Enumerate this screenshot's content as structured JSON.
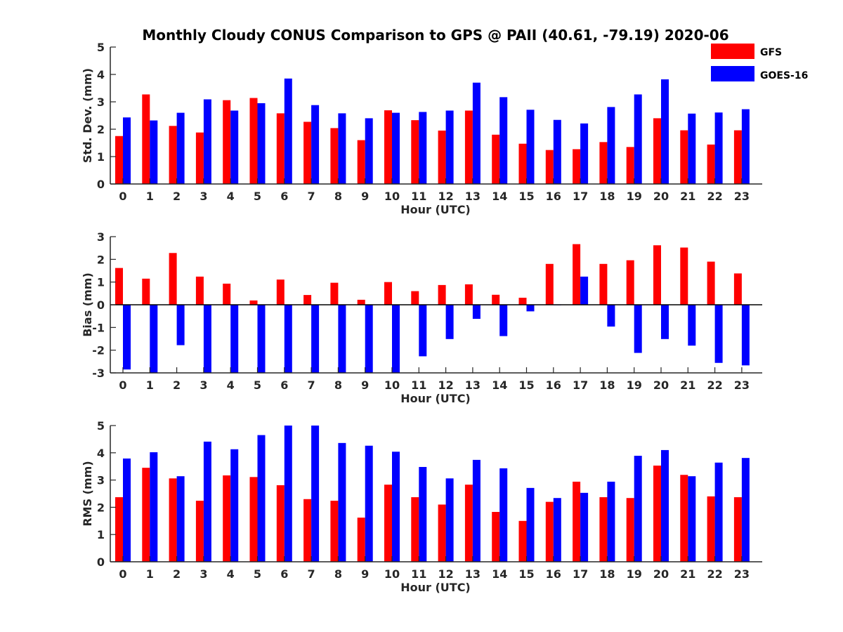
{
  "title": "Monthly Cloudy CONUS Comparison to GPS @ PAII (40.61, -79.19) 2020-06",
  "legend": [
    {
      "label": "GFS",
      "color": "#ff0000"
    },
    {
      "label": "GOES-16",
      "color": "#0000ff"
    }
  ],
  "chart_data": [
    {
      "type": "bar",
      "xlabel": "Hour (UTC)",
      "ylabel": "Std. Dev. (mm)",
      "ylim": [
        0,
        5
      ],
      "yticks": [
        0,
        1,
        2,
        3,
        4,
        5
      ],
      "categories": [
        "0",
        "1",
        "2",
        "3",
        "4",
        "5",
        "6",
        "7",
        "8",
        "9",
        "10",
        "11",
        "12",
        "13",
        "14",
        "15",
        "16",
        "17",
        "18",
        "19",
        "20",
        "21",
        "22",
        "23"
      ],
      "series": [
        {
          "name": "GFS",
          "color": "#ff0000",
          "values": [
            1.75,
            3.27,
            2.12,
            1.88,
            3.06,
            3.14,
            2.58,
            2.27,
            2.04,
            1.6,
            2.69,
            2.33,
            1.95,
            2.68,
            1.8,
            1.47,
            1.24,
            1.27,
            1.53,
            1.35,
            2.4,
            1.96,
            1.44,
            1.96
          ]
        },
        {
          "name": "GOES-16",
          "color": "#0000ff",
          "values": [
            2.43,
            2.32,
            2.6,
            3.09,
            2.68,
            2.95,
            3.85,
            2.88,
            2.58,
            2.4,
            2.6,
            2.63,
            2.68,
            3.7,
            3.17,
            2.71,
            2.34,
            2.21,
            2.81,
            3.27,
            3.82,
            2.57,
            2.61,
            2.73
          ]
        }
      ]
    },
    {
      "type": "bar",
      "xlabel": "Hour (UTC)",
      "ylabel": "Bias (mm)",
      "ylim": [
        -3,
        3
      ],
      "yticks": [
        -3,
        -2,
        -1,
        0,
        1,
        2,
        3
      ],
      "zero_line": true,
      "categories": [
        "0",
        "1",
        "2",
        "3",
        "4",
        "5",
        "6",
        "7",
        "8",
        "9",
        "10",
        "11",
        "12",
        "13",
        "14",
        "15",
        "16",
        "17",
        "18",
        "19",
        "20",
        "21",
        "22",
        "23"
      ],
      "series": [
        {
          "name": "GFS",
          "color": "#ff0000",
          "values": [
            1.62,
            1.15,
            2.28,
            1.24,
            0.93,
            0.19,
            1.11,
            0.43,
            0.97,
            0.22,
            1.0,
            0.6,
            0.87,
            0.9,
            0.44,
            0.31,
            1.8,
            2.67,
            1.8,
            1.96,
            2.62,
            2.52,
            1.9,
            1.38
          ]
        },
        {
          "name": "GOES-16",
          "color": "#0000ff",
          "values": [
            -2.85,
            -3.0,
            -1.78,
            -3.0,
            -3.0,
            -3.0,
            -3.0,
            -3.0,
            -3.0,
            -3.0,
            -3.0,
            -2.27,
            -1.51,
            -0.62,
            -1.38,
            -0.29,
            -0.02,
            1.24,
            -0.96,
            -2.12,
            -1.51,
            -1.8,
            -2.56,
            -2.67
          ]
        }
      ]
    },
    {
      "type": "bar",
      "xlabel": "Hour (UTC)",
      "ylabel": "RMS (mm)",
      "ylim": [
        0,
        5
      ],
      "yticks": [
        0,
        1,
        2,
        3,
        4,
        5
      ],
      "categories": [
        "0",
        "1",
        "2",
        "3",
        "4",
        "5",
        "6",
        "7",
        "8",
        "9",
        "10",
        "11",
        "12",
        "13",
        "14",
        "15",
        "16",
        "17",
        "18",
        "19",
        "20",
        "21",
        "22",
        "23"
      ],
      "series": [
        {
          "name": "GFS",
          "color": "#ff0000",
          "values": [
            2.37,
            3.45,
            3.06,
            2.24,
            3.17,
            3.11,
            2.81,
            2.3,
            2.24,
            1.62,
            2.83,
            2.37,
            2.1,
            2.83,
            1.83,
            1.5,
            2.2,
            2.94,
            2.37,
            2.34,
            3.53,
            3.19,
            2.4,
            2.37
          ]
        },
        {
          "name": "GOES-16",
          "color": "#0000ff",
          "values": [
            3.79,
            4.02,
            3.14,
            4.41,
            4.13,
            4.65,
            5.0,
            5.0,
            4.36,
            4.26,
            4.04,
            3.48,
            3.06,
            3.74,
            3.43,
            2.71,
            2.34,
            2.53,
            2.94,
            3.89,
            4.1,
            3.14,
            3.64,
            3.81
          ]
        }
      ]
    }
  ]
}
